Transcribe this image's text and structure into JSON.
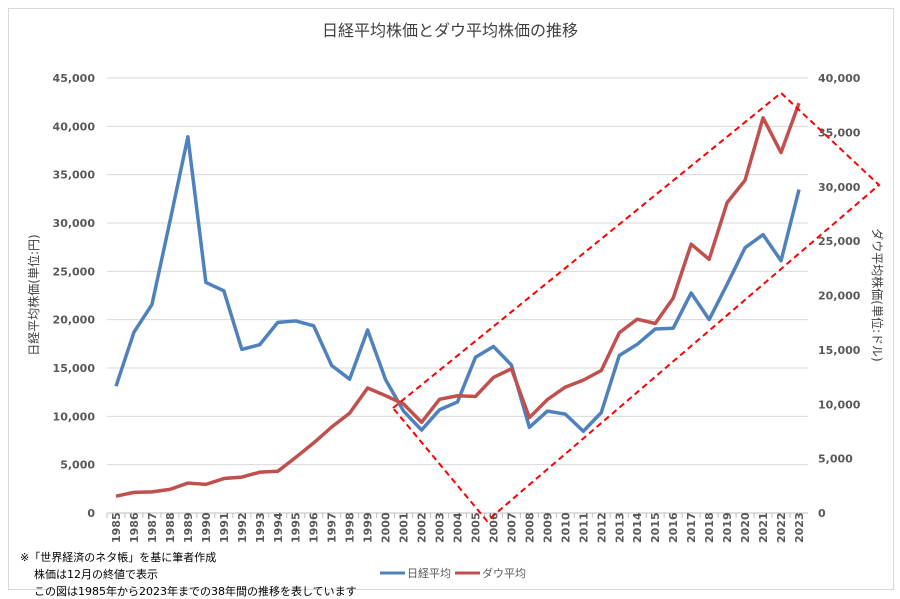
{
  "chart_data": {
    "type": "line",
    "title": "日経平均株価とダウ平均株価の推移",
    "ylabel": "日経平均株価(単位:円)",
    "y2label": "ダウ平均株価(単位:ドル)",
    "ylim": [
      0,
      45000
    ],
    "y2lim": [
      0,
      40000
    ],
    "yticks": [
      "0",
      "5,000",
      "10,000",
      "15,000",
      "20,000",
      "25,000",
      "30,000",
      "35,000",
      "40,000",
      "45,000"
    ],
    "y2ticks": [
      "0",
      "5,000",
      "10,000",
      "15,000",
      "20,000",
      "25,000",
      "30,000",
      "35,000",
      "40,000"
    ],
    "grid": true,
    "legend_placement": "bottom",
    "categories": [
      "1985",
      "1986",
      "1987",
      "1988",
      "1989",
      "1990",
      "1991",
      "1992",
      "1993",
      "1994",
      "1995",
      "1996",
      "1997",
      "1998",
      "1999",
      "2000",
      "2001",
      "2002",
      "2003",
      "2004",
      "2005",
      "2006",
      "2007",
      "2008",
      "2009",
      "2010",
      "2011",
      "2012",
      "2013",
      "2014",
      "2015",
      "2016",
      "2017",
      "2018",
      "2019",
      "2020",
      "2021",
      "2022",
      "2023"
    ],
    "series": [
      {
        "name": "日経平均",
        "axis": "left",
        "color": "#4f81bd",
        "values": [
          13113,
          18701,
          21564,
          30159,
          38916,
          23849,
          22984,
          16925,
          17417,
          19723,
          19868,
          19361,
          15259,
          13842,
          18934,
          13786,
          10543,
          8579,
          10677,
          11489,
          16111,
          17226,
          15308,
          8860,
          10546,
          10229,
          8455,
          10395,
          16291,
          17451,
          19034,
          19114,
          22765,
          20015,
          23657,
          27444,
          28792,
          26095,
          33464
        ]
      },
      {
        "name": "ダウ平均",
        "axis": "right",
        "color": "#c0504d",
        "values": [
          1547,
          1896,
          1939,
          2169,
          2753,
          2634,
          3169,
          3301,
          3754,
          3834,
          5117,
          6448,
          7908,
          9181,
          11497,
          10787,
          10021,
          8342,
          10454,
          10783,
          10718,
          12463,
          13265,
          8776,
          10428,
          11578,
          12218,
          13104,
          16577,
          17823,
          17425,
          19763,
          24719,
          23327,
          28538,
          30606,
          36338,
          33147,
          37690
        ]
      }
    ],
    "annotation_color": "#ff0000"
  },
  "notes": [
    "※「世界経済のネタ帳」を基に筆者作成",
    "株価は12月の終値で表示",
    "この図は1985年から2023年までの38年間の推移を表しています"
  ]
}
